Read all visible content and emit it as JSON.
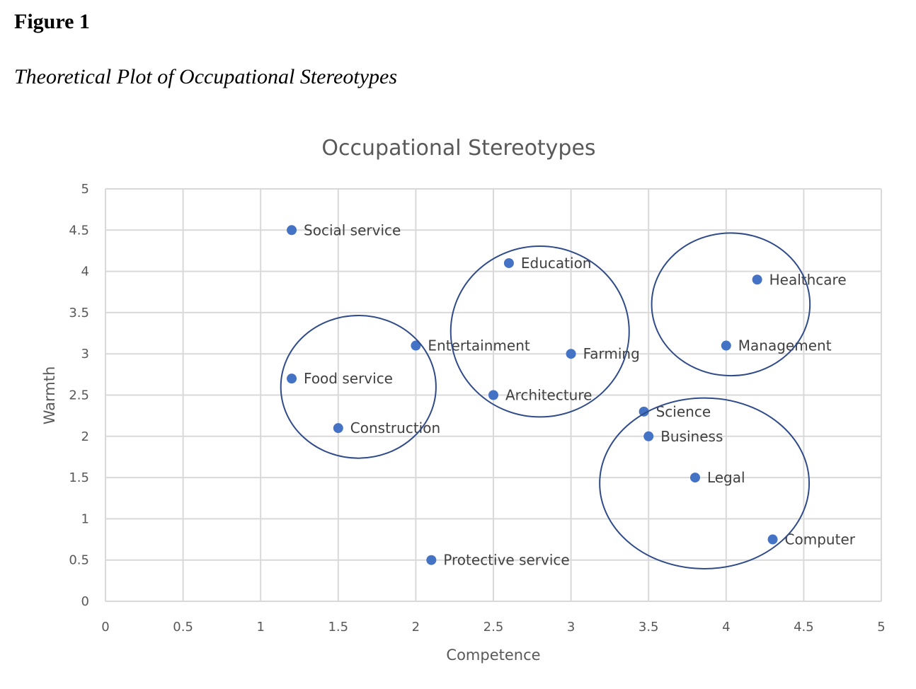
{
  "figure": {
    "label": "Figure 1",
    "caption": "Theoretical Plot of Occupational Stereotypes"
  },
  "colors": {
    "point": "#4472C4",
    "ellipse": "#2F4B8A",
    "grid": "#D9D9D9",
    "text": "#595959"
  },
  "chart_data": {
    "type": "scatter",
    "title": "Occupational Stereotypes",
    "xlabel": "Competence",
    "ylabel": "Warmth",
    "xlim": [
      0,
      5
    ],
    "ylim": [
      0,
      5
    ],
    "xticks": [
      "0",
      "0.5",
      "1",
      "1.5",
      "2",
      "2.5",
      "3",
      "3.5",
      "4",
      "4.5",
      "5"
    ],
    "yticks": [
      "0",
      "0.5",
      "1",
      "1.5",
      "2",
      "2.5",
      "3",
      "3.5",
      "4",
      "4.5",
      "5"
    ],
    "grid": true,
    "points": [
      {
        "label": "Social service",
        "x": 1.2,
        "y": 4.5
      },
      {
        "label": "Education",
        "x": 2.6,
        "y": 4.1
      },
      {
        "label": "Healthcare",
        "x": 4.2,
        "y": 3.9
      },
      {
        "label": "Entertainment",
        "x": 2.0,
        "y": 3.1
      },
      {
        "label": "Farming",
        "x": 3.0,
        "y": 3.0
      },
      {
        "label": "Management",
        "x": 4.0,
        "y": 3.1
      },
      {
        "label": "Food service",
        "x": 1.2,
        "y": 2.7
      },
      {
        "label": "Architecture",
        "x": 2.5,
        "y": 2.5
      },
      {
        "label": "Science",
        "x": 3.47,
        "y": 2.3
      },
      {
        "label": "Construction",
        "x": 1.5,
        "y": 2.1
      },
      {
        "label": "Business",
        "x": 3.5,
        "y": 2.0
      },
      {
        "label": "Legal",
        "x": 3.8,
        "y": 1.5
      },
      {
        "label": "Computer",
        "x": 4.3,
        "y": 0.75
      },
      {
        "label": "Protective service",
        "x": 2.1,
        "y": 0.5
      }
    ],
    "clusters": [
      {
        "cx": 1.63,
        "cy": 2.6,
        "rx": 0.5,
        "ry": 0.865
      },
      {
        "cx": 2.8,
        "cy": 3.27,
        "rx": 0.575,
        "ry": 1.035
      },
      {
        "cx": 4.03,
        "cy": 3.6,
        "rx": 0.51,
        "ry": 0.865
      },
      {
        "cx": 3.86,
        "cy": 1.43,
        "rx": 0.675,
        "ry": 1.035
      }
    ]
  }
}
